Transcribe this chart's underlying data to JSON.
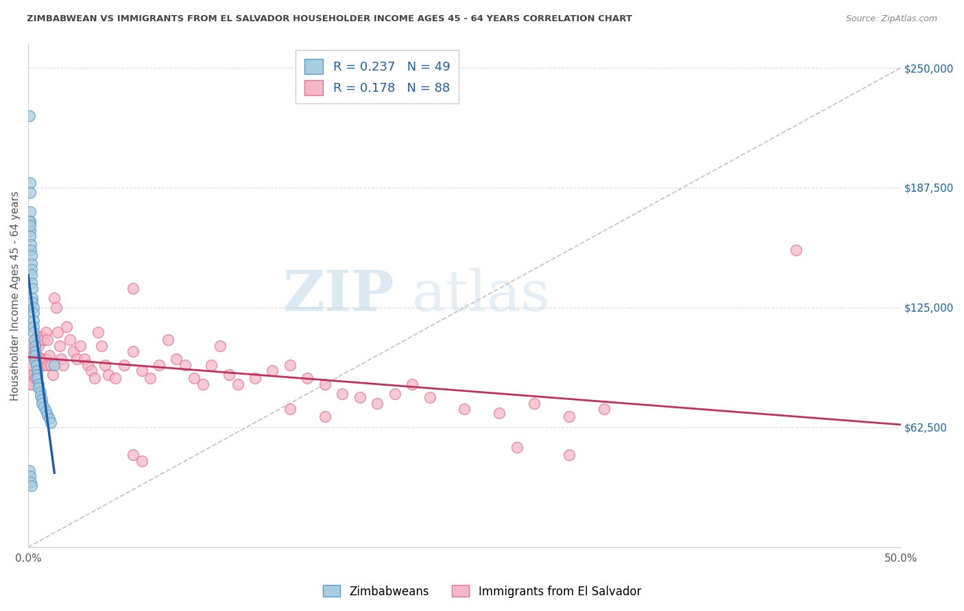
{
  "title": "ZIMBABWEAN VS IMMIGRANTS FROM EL SALVADOR HOUSEHOLDER INCOME AGES 45 - 64 YEARS CORRELATION CHART",
  "source": "Source: ZipAtlas.com",
  "ylabel": "Householder Income Ages 45 - 64 years",
  "xmin": 0.0,
  "xmax": 0.5,
  "ymin": 0,
  "ymax": 262500,
  "yticks": [
    0,
    62500,
    125000,
    187500,
    250000
  ],
  "ytick_labels": [
    "",
    "$62,500",
    "$125,000",
    "$187,500",
    "$250,000"
  ],
  "xticks": [
    0.0,
    0.1,
    0.2,
    0.3,
    0.4,
    0.5
  ],
  "xtick_labels": [
    "0.0%",
    "",
    "",
    "",
    "",
    "50.0%"
  ],
  "blue_color": "#a8cce0",
  "pink_color": "#f4b8c8",
  "blue_edge": "#5b9dc9",
  "pink_edge": "#e87090",
  "blue_trend": "#1a5fa8",
  "pink_trend": "#c0305a",
  "blue_r": "0.237",
  "blue_n": "49",
  "pink_r": "0.178",
  "pink_n": "88",
  "legend1_label": "Zimbabweans",
  "legend2_label": "Immigrants from El Salvador",
  "watermark": "ZIPatlas",
  "ref_line_color": "#bbbbbb",
  "grid_color": "#d8d8d8",
  "title_color": "#444444",
  "source_color": "#888888",
  "tick_label_color": "#1a5fa8",
  "axis_label_color": "#555555",
  "blue_x": [
    0.0008,
    0.001,
    0.001,
    0.001,
    0.001,
    0.0012,
    0.0013,
    0.0015,
    0.0015,
    0.0018,
    0.002,
    0.002,
    0.002,
    0.002,
    0.0022,
    0.0025,
    0.0025,
    0.003,
    0.003,
    0.003,
    0.003,
    0.0032,
    0.0035,
    0.004,
    0.004,
    0.004,
    0.004,
    0.0045,
    0.005,
    0.005,
    0.005,
    0.006,
    0.006,
    0.007,
    0.007,
    0.008,
    0.008,
    0.009,
    0.01,
    0.011,
    0.012,
    0.013,
    0.015,
    0.0008,
    0.001,
    0.0015,
    0.002,
    0.0008,
    0.001
  ],
  "blue_y": [
    225000,
    190000,
    185000,
    175000,
    170000,
    165000,
    162000,
    158000,
    155000,
    152000,
    148000,
    145000,
    142000,
    138000,
    135000,
    130000,
    128000,
    125000,
    122000,
    118000,
    115000,
    112000,
    108000,
    105000,
    102000,
    100000,
    97000,
    95000,
    92000,
    90000,
    88000,
    85000,
    83000,
    81000,
    79000,
    77000,
    75000,
    73000,
    71000,
    69000,
    67000,
    65000,
    95000,
    40000,
    37000,
    34000,
    32000,
    170000,
    168000
  ],
  "pink_x": [
    0.001,
    0.001,
    0.001,
    0.002,
    0.002,
    0.002,
    0.003,
    0.003,
    0.003,
    0.004,
    0.004,
    0.004,
    0.005,
    0.005,
    0.005,
    0.006,
    0.006,
    0.007,
    0.007,
    0.008,
    0.008,
    0.009,
    0.009,
    0.01,
    0.01,
    0.011,
    0.011,
    0.012,
    0.013,
    0.014,
    0.015,
    0.016,
    0.017,
    0.018,
    0.019,
    0.02,
    0.022,
    0.024,
    0.026,
    0.028,
    0.03,
    0.032,
    0.034,
    0.036,
    0.038,
    0.04,
    0.042,
    0.044,
    0.046,
    0.05,
    0.055,
    0.06,
    0.065,
    0.07,
    0.075,
    0.08,
    0.085,
    0.09,
    0.095,
    0.1,
    0.105,
    0.11,
    0.115,
    0.12,
    0.13,
    0.14,
    0.15,
    0.16,
    0.17,
    0.18,
    0.19,
    0.2,
    0.21,
    0.22,
    0.23,
    0.25,
    0.27,
    0.29,
    0.31,
    0.33,
    0.15,
    0.17,
    0.06,
    0.065,
    0.28,
    0.31,
    0.44,
    0.06
  ],
  "pink_y": [
    95000,
    90000,
    85000,
    100000,
    95000,
    85000,
    105000,
    100000,
    90000,
    108000,
    100000,
    88000,
    110000,
    100000,
    88000,
    105000,
    95000,
    108000,
    95000,
    110000,
    98000,
    108000,
    95000,
    112000,
    98000,
    108000,
    95000,
    100000,
    95000,
    90000,
    130000,
    125000,
    112000,
    105000,
    98000,
    95000,
    115000,
    108000,
    102000,
    98000,
    105000,
    98000,
    95000,
    92000,
    88000,
    112000,
    105000,
    95000,
    90000,
    88000,
    95000,
    102000,
    92000,
    88000,
    95000,
    108000,
    98000,
    95000,
    88000,
    85000,
    95000,
    105000,
    90000,
    85000,
    88000,
    92000,
    95000,
    88000,
    85000,
    80000,
    78000,
    75000,
    80000,
    85000,
    78000,
    72000,
    70000,
    75000,
    68000,
    72000,
    72000,
    68000,
    48000,
    45000,
    52000,
    48000,
    155000,
    135000
  ]
}
